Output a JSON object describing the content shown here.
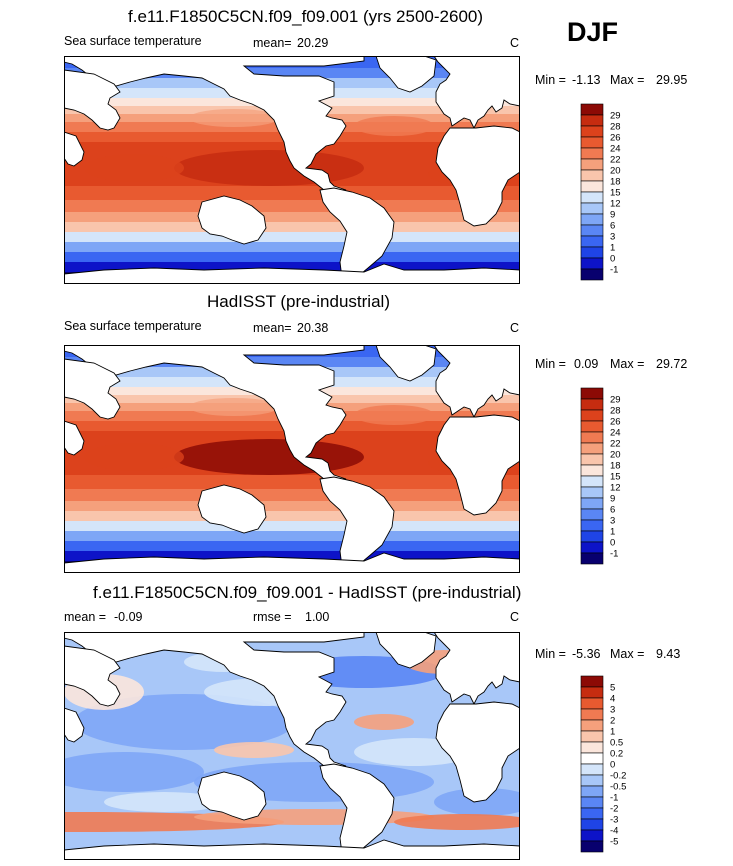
{
  "season": "DJF",
  "colors": {
    "sst_levels": [
      "#08006e",
      "#0d13c8",
      "#1f44e6",
      "#3a66f2",
      "#5a86f4",
      "#7ea6f6",
      "#a8c7f8",
      "#d4e5fa",
      "#fbe6dc",
      "#f9c5ac",
      "#f5a07c",
      "#f07a52",
      "#e85a30",
      "#dc421c",
      "#c62c10",
      "#8c0a05"
    ],
    "diff_levels": [
      "#08006e",
      "#0d13c8",
      "#1f44e6",
      "#3a66f2",
      "#5a86f4",
      "#7ea6f6",
      "#a8c7f8",
      "#d4e5fa",
      "#ffffff",
      "#fbe6dc",
      "#f9c5ac",
      "#f5a07c",
      "#f07a52",
      "#e85a30",
      "#c62c10",
      "#8c0a05"
    ]
  },
  "chart_data": [
    {
      "type": "heatmap",
      "title": "f.e11.F1850C5CN.f09_f09.001 (yrs 2500-2600)",
      "variable": "Sea surface temperature",
      "mean_label": "mean=",
      "mean": "20.29",
      "units": "C",
      "min_label": "Min =",
      "min": "-1.13",
      "max_label": "Max =",
      "max": "29.95",
      "colorbar_levels": [
        "29",
        "28",
        "26",
        "24",
        "22",
        "20",
        "18",
        "15",
        "12",
        "9",
        "6",
        "3",
        "1",
        "0",
        "-1"
      ]
    },
    {
      "type": "heatmap",
      "title": "HadISST (pre-industrial)",
      "variable": "Sea surface temperature",
      "mean_label": "mean=",
      "mean": "20.38",
      "units": "C",
      "min_label": "Min =",
      "min": "0.09",
      "max_label": "Max =",
      "max": "29.72",
      "colorbar_levels": [
        "29",
        "28",
        "26",
        "24",
        "22",
        "20",
        "18",
        "15",
        "12",
        "9",
        "6",
        "3",
        "1",
        "0",
        "-1"
      ]
    },
    {
      "type": "heatmap",
      "title": "f.e11.F1850C5CN.f09_f09.001 - HadISST (pre-industrial)",
      "mean_label": "mean =",
      "mean": "-0.09",
      "rmse_label": "rmse =",
      "rmse": "1.00",
      "units": "C",
      "min_label": "Min =",
      "min": "-5.36",
      "max_label": "Max =",
      "max": "9.43",
      "colorbar_levels": [
        "5",
        "4",
        "3",
        "2",
        "1",
        "0.5",
        "0.2",
        "0",
        "-0.2",
        "-0.5",
        "-1",
        "-2",
        "-3",
        "-4",
        "-5"
      ]
    }
  ]
}
